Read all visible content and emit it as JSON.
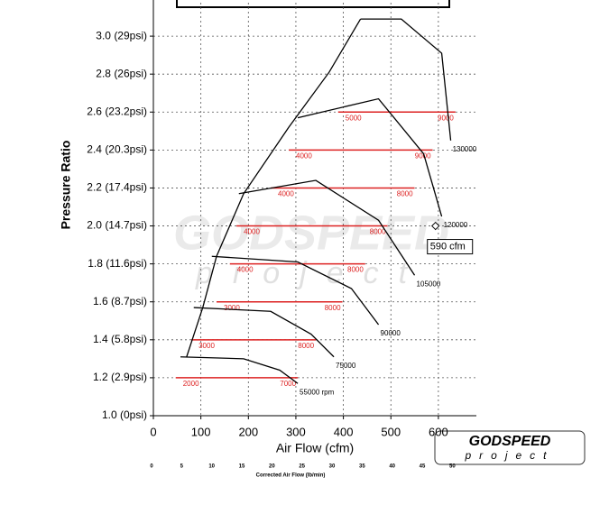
{
  "chart_data": {
    "type": "line",
    "xlabel": "Air Flow (cfm)",
    "ylabel": "Pressure Ratio",
    "x2label": "Corrected Air Flow (lb/min)",
    "xlim": [
      0,
      680
    ],
    "xticks": [
      0,
      100,
      200,
      300,
      400,
      500,
      600
    ],
    "x2lim": [
      0,
      54
    ],
    "x2ticks": [
      0,
      5,
      10,
      15,
      20,
      25,
      30,
      35,
      40,
      45,
      50
    ],
    "ylim": [
      1.0,
      3.2
    ],
    "yticks": [
      {
        "value": 1.0,
        "label": "1.0 (0psi)"
      },
      {
        "value": 1.2,
        "label": "1.2 (2.9psi)"
      },
      {
        "value": 1.4,
        "label": "1.4 (5.8psi)"
      },
      {
        "value": 1.6,
        "label": "1.6 (8.7psi)"
      },
      {
        "value": 1.8,
        "label": "1.8 (11.6psi)"
      },
      {
        "value": 2.0,
        "label": "2.0 (14.7psi)"
      },
      {
        "value": 2.2,
        "label": "2.2 (17.4psi)"
      },
      {
        "value": 2.4,
        "label": "2.4 (20.3psi)"
      },
      {
        "value": 2.6,
        "label": "2.6 (23.2psi)"
      },
      {
        "value": 2.8,
        "label": "2.8 (26psi)"
      },
      {
        "value": 3.0,
        "label": "3.0 (29psi)"
      }
    ],
    "grid": true,
    "surge_line": {
      "color": "#000",
      "x": [
        70,
        104,
        133,
        190,
        285,
        370,
        436
      ],
      "values": [
        1.31,
        1.57,
        1.84,
        2.17,
        2.52,
        2.81,
        3.09
      ]
    },
    "series": [
      {
        "name": "55000 rpm",
        "color": "#000",
        "x": [
          57,
          190,
          266,
          304
        ],
        "values": [
          1.31,
          1.3,
          1.24,
          1.17
        ]
      },
      {
        "name": "75000",
        "color": "#000",
        "x": [
          85,
          247,
          332,
          380
        ],
        "values": [
          1.57,
          1.55,
          1.43,
          1.31
        ]
      },
      {
        "name": "90000",
        "color": "#000",
        "x": [
          123,
          304,
          417,
          474
        ],
        "values": [
          1.84,
          1.81,
          1.67,
          1.48
        ]
      },
      {
        "name": "105000",
        "color": "#000",
        "x": [
          180,
          342,
          474,
          550
        ],
        "values": [
          2.17,
          2.24,
          2.03,
          1.74
        ]
      },
      {
        "name": "120000",
        "color": "#000",
        "x": [
          304,
          474,
          569,
          607
        ],
        "values": [
          2.57,
          2.67,
          2.38,
          2.05
        ]
      },
      {
        "name": "130000",
        "color": "#000",
        "x": [
          436,
          522,
          607,
          626
        ],
        "values": [
          3.09,
          3.09,
          2.91,
          2.45
        ]
      }
    ],
    "operating_color": "#d22",
    "operating_lines": [
      {
        "pressure": 1.2,
        "x": [
          47,
          304
        ],
        "rpm": [
          2000,
          7000
        ]
      },
      {
        "pressure": 1.4,
        "x": [
          80,
          342
        ],
        "rpm": [
          3000,
          8000
        ]
      },
      {
        "pressure": 1.6,
        "x": [
          133,
          398
        ],
        "rpm": [
          3000,
          8000
        ]
      },
      {
        "pressure": 1.8,
        "x": [
          161,
          446
        ],
        "rpm": [
          4000,
          8000
        ]
      },
      {
        "pressure": 2.0,
        "x": [
          175,
          493
        ],
        "rpm": [
          4000,
          8000
        ]
      },
      {
        "pressure": 2.2,
        "x": [
          247,
          550
        ],
        "rpm": [
          4000,
          8000
        ]
      },
      {
        "pressure": 2.4,
        "x": [
          285,
          588
        ],
        "rpm": [
          4000,
          9000
        ]
      },
      {
        "pressure": 2.6,
        "x": [
          389,
          636
        ],
        "rpm": [
          5000,
          9000
        ]
      }
    ],
    "annotation": {
      "text": "590 cfm",
      "x": 594,
      "y": 2.0
    },
    "logo": {
      "brand": "GODSPEED",
      "tagline": "project"
    }
  }
}
